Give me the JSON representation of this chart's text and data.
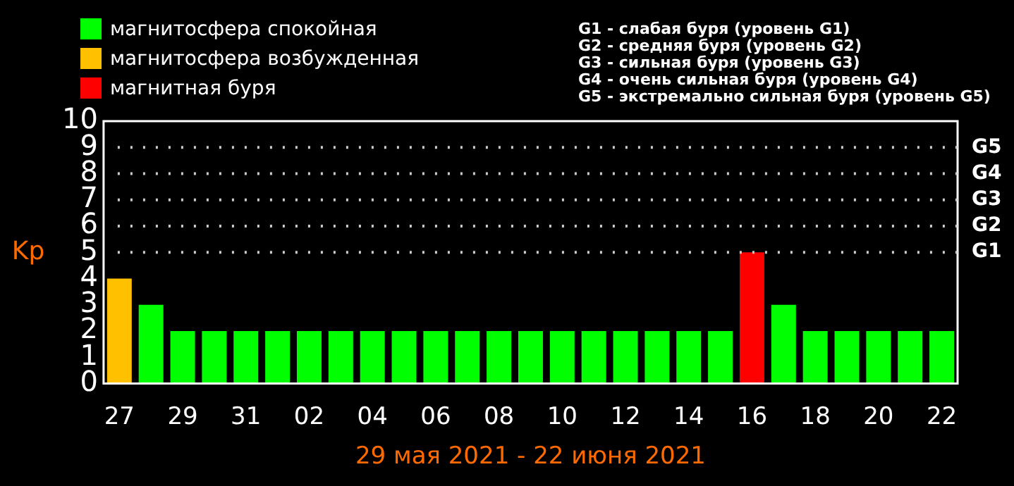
{
  "chart_data": {
    "type": "bar",
    "xlabel": "29 мая 2021 - 22 июня 2021",
    "ylabel": "Kp",
    "categories": [
      "27",
      null,
      "29",
      null,
      "31",
      null,
      "02",
      null,
      "04",
      null,
      "06",
      null,
      "08",
      null,
      "10",
      null,
      "12",
      null,
      "14",
      null,
      "16",
      null,
      "18",
      null,
      "20",
      null,
      "22"
    ],
    "series": [
      {
        "name": "магнитосфера спокойная",
        "color": "#00ff00",
        "values": [
          null,
          3,
          2,
          2,
          2,
          2,
          2,
          2,
          2,
          2,
          2,
          2,
          2,
          2,
          2,
          2,
          2,
          2,
          2,
          2,
          null,
          3,
          2,
          2,
          2,
          2,
          2
        ]
      },
      {
        "name": "магнитосфера возбужденная",
        "color": "#ffc000",
        "values": [
          4,
          null,
          null,
          null,
          null,
          null,
          null,
          null,
          null,
          null,
          null,
          null,
          null,
          null,
          null,
          null,
          null,
          null,
          null,
          null,
          null,
          null,
          null,
          null,
          null,
          null,
          null
        ]
      },
      {
        "name": "магнитная буря",
        "color": "#ff0000",
        "values": [
          null,
          null,
          null,
          null,
          null,
          null,
          null,
          null,
          null,
          null,
          null,
          null,
          null,
          null,
          null,
          null,
          null,
          null,
          null,
          null,
          5,
          null,
          null,
          null,
          null,
          null,
          null
        ]
      }
    ],
    "stacked": true,
    "ylim": [
      0,
      10
    ],
    "yticks": [
      0,
      1,
      2,
      3,
      4,
      5,
      6,
      7,
      8,
      9,
      10
    ],
    "ref_lines": [
      {
        "axis": "y",
        "value": 5,
        "label": "G1",
        "color": "#cccccc",
        "line_style": "dotted"
      },
      {
        "axis": "y",
        "value": 6,
        "label": "G2",
        "color": "#cccccc",
        "line_style": "dotted"
      },
      {
        "axis": "y",
        "value": 7,
        "label": "G3",
        "color": "#cccccc",
        "line_style": "dotted"
      },
      {
        "axis": "y",
        "value": 8,
        "label": "G4",
        "color": "#cccccc",
        "line_style": "dotted"
      },
      {
        "axis": "y",
        "value": 9,
        "label": "G5",
        "color": "#cccccc",
        "line_style": "dotted"
      }
    ],
    "legend": "top left",
    "annotations": [
      "G1 - слабая буря (уровень G1)",
      "G2 - средняя буря (уровень G2)",
      "G3 - сильная буря (уровень G3)",
      "G4 - очень сильная буря (уровень G4)",
      "G5 - экстремально сильная буря (уровень G5)"
    ]
  }
}
